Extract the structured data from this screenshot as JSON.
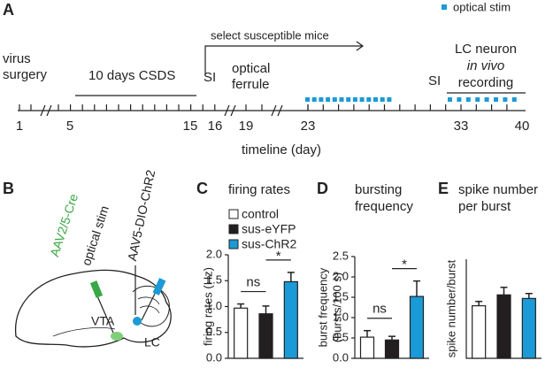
{
  "panel_labels": [
    "A",
    "B",
    "C",
    "D",
    "E"
  ],
  "timeline": {
    "legend": "optical stim",
    "legend_color": "#1a9ad6",
    "virus_surgery": [
      "virus",
      "surgery"
    ],
    "csds": "10 days CSDS",
    "select": "select susceptible mice",
    "si_1": "SI",
    "ferrule": [
      "optical",
      "ferrule"
    ],
    "si_2": "SI",
    "recording": [
      "LC neuron",
      "in vivo",
      "recording"
    ],
    "day_labels": [
      "1",
      "5",
      "15",
      "16",
      "19",
      "23",
      "33",
      "40"
    ],
    "xlabel": "timeline (day)"
  },
  "panel_b": {
    "cre": "AAV2/5-Cre",
    "stim": "optical stim",
    "chr2": "AAV5-DIO-ChR2",
    "vta": "VTA",
    "lc": "LC"
  },
  "legend": [
    {
      "name": "control",
      "color": "#ffffff"
    },
    {
      "name": "sus-eYFP",
      "color": "#231f20"
    },
    {
      "name": "sus-ChR2",
      "color": "#1a9ad6"
    }
  ],
  "chart_data": [
    {
      "type": "bar",
      "title": [
        "firing rates"
      ],
      "ylabel": [
        "firing rates (Hz)"
      ],
      "categories": [
        null,
        null,
        null
      ],
      "values": [
        0.97,
        0.86,
        1.48
      ],
      "errors": [
        0.08,
        0.15,
        0.18
      ],
      "colors": [
        "#ffffff",
        "#231f20",
        "#1a9ad6"
      ],
      "ylim": [
        0,
        2
      ],
      "yticks": [
        {
          "value": 0,
          "label": "0.0"
        },
        {
          "value": 0.5,
          "label": "0.5"
        },
        {
          "value": 1,
          "label": "1.0"
        },
        {
          "value": 1.5,
          "label": "1.5"
        },
        {
          "value": 2,
          "label": "2.0"
        }
      ],
      "annotations": [
        "ns",
        "*"
      ]
    },
    {
      "type": "bar",
      "title": [
        "bursting",
        "frequency"
      ],
      "ylabel": [
        "burst frequency",
        "(bursts/100 s)"
      ],
      "categories": [
        null,
        null,
        null
      ],
      "values": [
        0.52,
        0.45,
        1.52
      ],
      "errors": [
        0.16,
        0.09,
        0.38
      ],
      "colors": [
        "#ffffff",
        "#231f20",
        "#1a9ad6"
      ],
      "ylim": [
        0,
        2.5
      ],
      "yticks": [
        {
          "value": 0,
          "label": "0.0"
        },
        {
          "value": 0.5,
          "label": "0.5"
        },
        {
          "value": 1,
          "label": "1.0"
        },
        {
          "value": 1.5,
          "label": "1.5"
        },
        {
          "value": 2,
          "label": "2.0"
        },
        {
          "value": 2.5,
          "label": "2.5"
        }
      ],
      "annotations": [
        "ns",
        "*"
      ]
    },
    {
      "type": "bar",
      "title": [
        "spike number",
        "per burst"
      ],
      "ylabel": [
        "spike number/burst"
      ],
      "categories": [
        null,
        null,
        null
      ],
      "values": [
        2.65,
        3.2,
        3.02
      ],
      "errors": [
        0.22,
        0.38,
        0.25
      ],
      "colors": [
        "#ffffff",
        "#231f20",
        "#1a9ad6"
      ],
      "ylim": [
        0,
        5
      ]
    }
  ]
}
